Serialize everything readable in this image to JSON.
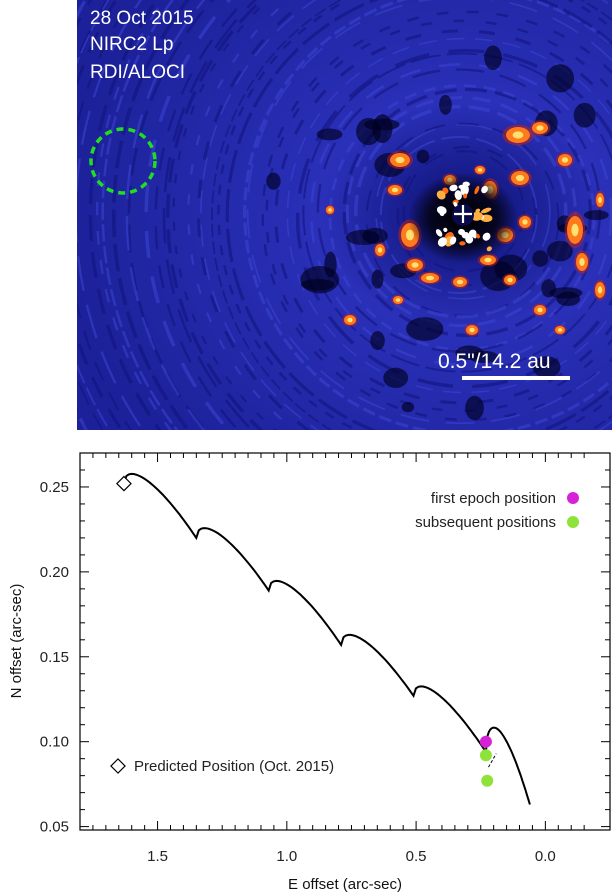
{
  "image_panel": {
    "date_label": "28 Oct 2015",
    "instrument_label": "NIRC2 Lp",
    "method_label": "RDI/ALOCI",
    "scale_label": "0.5\"/14.2 au",
    "colors": {
      "background": "#1a1f9e",
      "hot": "#ff7a1a",
      "circle": "#22dd22",
      "star_marker": "#ffffff"
    },
    "icons": [
      "dashed-circle-icon",
      "star-cross-icon"
    ]
  },
  "chart_data": {
    "type": "scatter",
    "title": "",
    "xlabel": "E offset (arc-sec)",
    "ylabel": "N offset (arc-sec)",
    "xlim": [
      1.8,
      -0.25
    ],
    "ylim": [
      0.048,
      0.27
    ],
    "x_ticks": [
      1.5,
      1.0,
      0.5,
      0.0
    ],
    "x_tick_labels": [
      "1.5",
      "1.0",
      "0.5",
      "0.0"
    ],
    "y_ticks": [
      0.05,
      0.1,
      0.15,
      0.2,
      0.25
    ],
    "y_tick_labels": [
      "0.05",
      "0.10",
      "0.15",
      "0.20",
      "0.25"
    ],
    "grid": false,
    "legend_placement": "top-right",
    "series": [
      {
        "name": "first epoch position",
        "color": "#d622d6",
        "marker": "circle",
        "points": [
          {
            "x": 0.23,
            "y": 0.1
          }
        ]
      },
      {
        "name": "subsequent positions",
        "color": "#8de33a",
        "marker": "circle",
        "points": [
          {
            "x": 0.23,
            "y": 0.092
          },
          {
            "x": 0.225,
            "y": 0.077
          }
        ]
      }
    ],
    "predicted": {
      "label": "Predicted Position (Oct. 2015)",
      "x": 1.63,
      "y": 0.252,
      "marker": "diamond"
    },
    "track": {
      "color": "#000000",
      "cusps": [
        {
          "x": 1.63,
          "y": 0.252
        },
        {
          "x": 1.35,
          "y": 0.22
        },
        {
          "x": 1.07,
          "y": 0.189
        },
        {
          "x": 0.79,
          "y": 0.157
        },
        {
          "x": 0.51,
          "y": 0.127
        },
        {
          "x": 0.23,
          "y": 0.094
        },
        {
          "x": 0.06,
          "y": 0.063
        }
      ],
      "arch_heights": [
        0.006,
        0.006,
        0.006,
        0.006,
        0.006,
        0.011
      ]
    }
  }
}
